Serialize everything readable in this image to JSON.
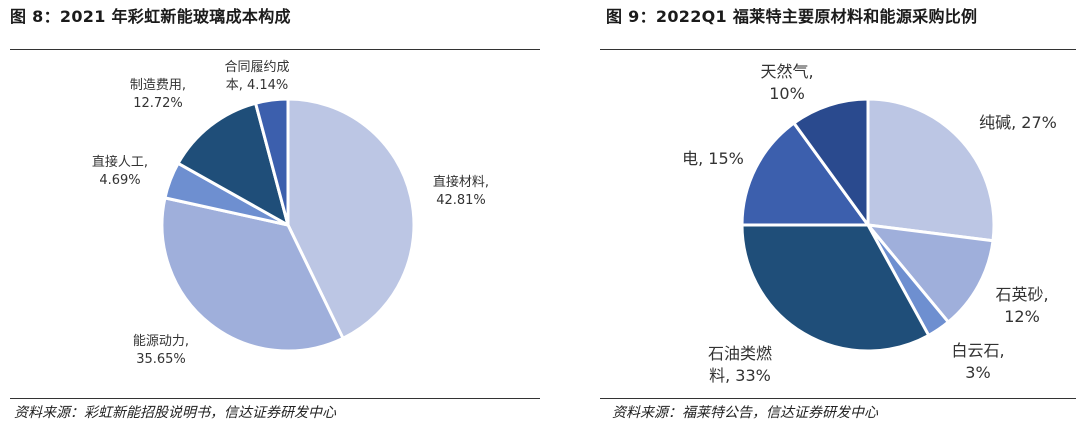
{
  "left": {
    "title": "图 8：2021 年彩虹新能玻璃成本构成",
    "source": "资料来源：彩虹新能招股说明书，信达证券研发中心"
  },
  "right": {
    "title": "图 9：2022Q1 福莱特主要原材料和能源采购比例",
    "source": "资料来源：福莱特公告，信达证券研发中心"
  },
  "chart_data": [
    {
      "type": "pie",
      "title": "图 8：2021 年彩虹新能玻璃成本构成",
      "slices": [
        {
          "lines": [
            "直接材料,",
            "42.81%"
          ],
          "value": 42.81,
          "color": "#bcc6e4"
        },
        {
          "lines": [
            "能源动力,",
            "35.65%"
          ],
          "value": 35.65,
          "color": "#9fafdb"
        },
        {
          "lines": [
            "直接人工,",
            "4.69%"
          ],
          "value": 4.69,
          "color": "#6e8fd0"
        },
        {
          "lines": [
            "制造费用,",
            "12.72%"
          ],
          "value": 12.72,
          "color": "#1f4e79"
        },
        {
          "lines": [
            "合同履约成",
            "本, 4.14%"
          ],
          "value": 4.14,
          "color": "#3c5fad"
        }
      ]
    },
    {
      "type": "pie",
      "title": "图 9：2022Q1 福莱特主要原材料和能源采购比例",
      "slices": [
        {
          "lines": [
            "纯碱, 27%"
          ],
          "value": 27,
          "color": "#bcc6e4"
        },
        {
          "lines": [
            "石英砂,",
            "12%"
          ],
          "value": 12,
          "color": "#9fafdb"
        },
        {
          "lines": [
            "白云石,",
            "3%"
          ],
          "value": 3,
          "color": "#6e8fd0"
        },
        {
          "lines": [
            "石油类燃",
            "料, 33%"
          ],
          "value": 33,
          "color": "#1f4e79"
        },
        {
          "lines": [
            "电, 15%"
          ],
          "value": 15,
          "color": "#3c5fad"
        },
        {
          "lines": [
            "天然气,",
            "10%"
          ],
          "value": 10,
          "color": "#2a4a8e"
        }
      ]
    }
  ]
}
